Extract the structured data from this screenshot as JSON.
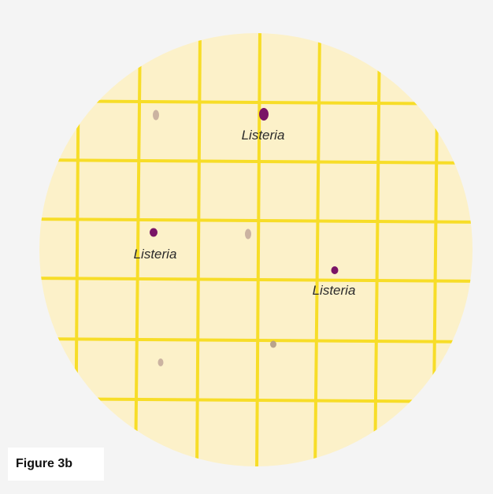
{
  "figure": {
    "caption": "Figure 3b",
    "colony_label": "Listeria"
  },
  "colors": {
    "background": "#f4f4f4",
    "agar": "#fcf1c9",
    "grid_lines": "#f7dd28",
    "listeria_colony": "#7a1466",
    "background_colony": "#c2a89a",
    "caption_box": "#ffffff"
  },
  "colonies": [
    {
      "kind": "listeria",
      "label": "Listeria"
    },
    {
      "kind": "listeria",
      "label": "Listeria"
    },
    {
      "kind": "listeria",
      "label": "Listeria"
    },
    {
      "kind": "background"
    },
    {
      "kind": "background"
    },
    {
      "kind": "background"
    },
    {
      "kind": "background"
    }
  ]
}
